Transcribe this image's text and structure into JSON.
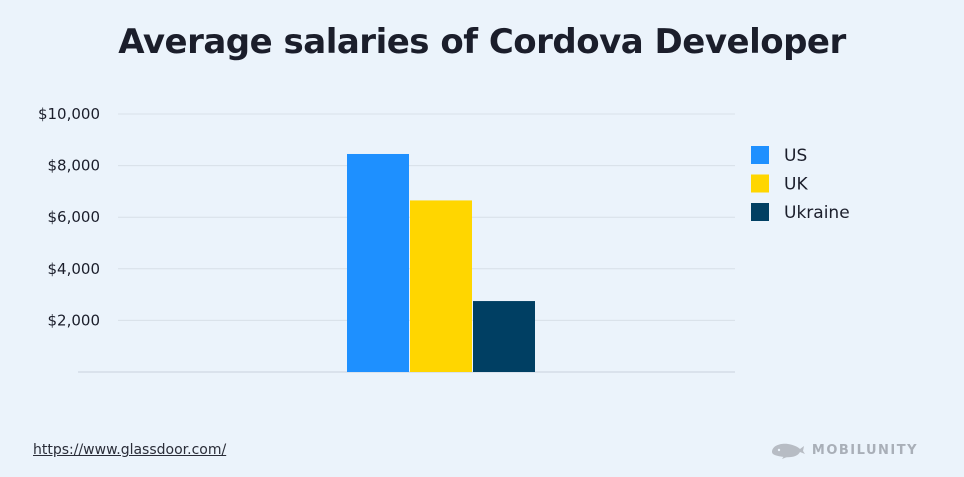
{
  "source_link": "https://www.glassdoor.com/",
  "brand_name": "MOBILUNITY",
  "chart_data": {
    "type": "bar",
    "title": "Average salaries of Cordova Developer",
    "categories": [
      ""
    ],
    "series": [
      {
        "name": "US",
        "values": [
          8450
        ],
        "color": "#1e90ff"
      },
      {
        "name": "UK",
        "values": [
          6650
        ],
        "color": "#ffd600"
      },
      {
        "name": "Ukraine",
        "values": [
          2750
        ],
        "color": "#003f63"
      }
    ],
    "yticks": [
      {
        "value": 2000,
        "label": "$2,000"
      },
      {
        "value": 4000,
        "label": "$4,000"
      },
      {
        "value": 6000,
        "label": "$6,000"
      },
      {
        "value": 8000,
        "label": "$8,000"
      },
      {
        "value": 10000,
        "label": "$10,000"
      }
    ],
    "ylim": [
      0,
      10000
    ],
    "xlabel": "",
    "ylabel": "",
    "grid": true,
    "legend_position": "right"
  }
}
